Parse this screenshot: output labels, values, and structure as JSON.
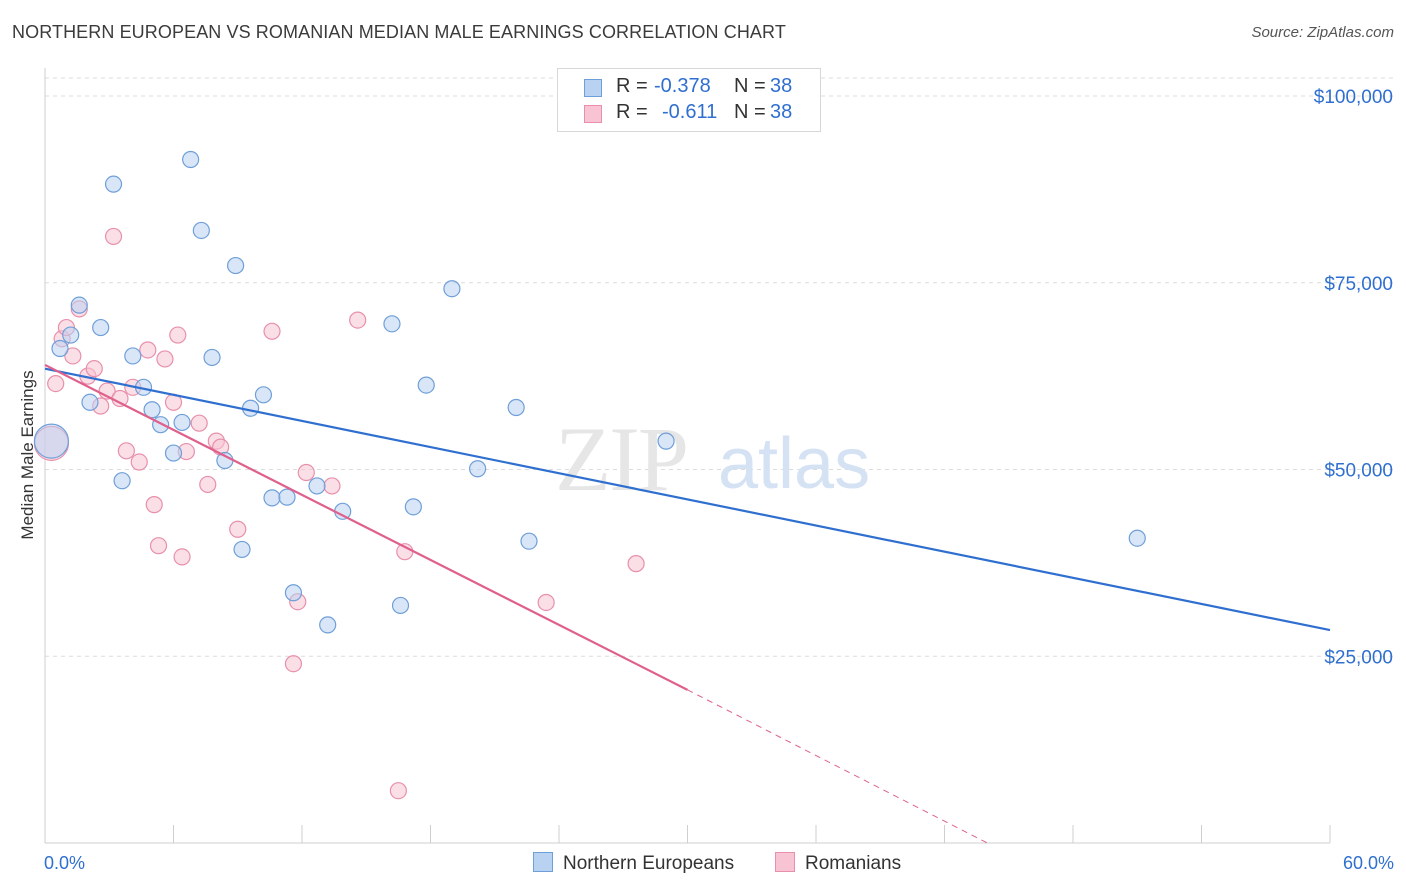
{
  "title": "NORTHERN EUROPEAN VS ROMANIAN MEDIAN MALE EARNINGS CORRELATION CHART",
  "source": "Source: ZipAtlas.com",
  "watermark": {
    "zip": "ZIP",
    "atlas": "atlas"
  },
  "legend": {
    "series1": {
      "r_label": "R =",
      "r_value": "-0.378",
      "n_label": "N =",
      "n_value": "38"
    },
    "series2": {
      "r_label": "R =",
      "r_value": "-0.611",
      "n_label": "N =",
      "n_value": "38"
    }
  },
  "colors": {
    "blue_fill": "#b9d2f2",
    "blue_stroke": "#6f9fd8",
    "blue_line": "#2f6fd0",
    "pink_fill": "#f8c4d4",
    "pink_stroke": "#e890ab",
    "pink_line": "#e0608c",
    "axis_text": "#2f6fd0",
    "grid": "#dcdcdc"
  },
  "chart_data": {
    "type": "scatter",
    "title": "NORTHERN EUROPEAN VS ROMANIAN MEDIAN MALE EARNINGS CORRELATION CHART",
    "xlabel": "",
    "ylabel": "Median Male Earnings",
    "xlim": [
      0,
      60
    ],
    "ylim": [
      0,
      105000
    ],
    "x_tick_labels": [
      "0.0%",
      "60.0%"
    ],
    "y_ticks": [
      25000,
      50000,
      75000,
      100000
    ],
    "y_tick_labels": [
      "$25,000",
      "$50,000",
      "$75,000",
      "$100,000"
    ],
    "grid": true,
    "legend_position": "top-center",
    "series": [
      {
        "name": "Northern Europeans",
        "color": "#6f9fd8",
        "trend": {
          "x": [
            0,
            60
          ],
          "y": [
            63500,
            28500
          ]
        },
        "points": [
          {
            "x": 0.3,
            "y": 53800,
            "size": "large"
          },
          {
            "x": 0.7,
            "y": 66200
          },
          {
            "x": 1.2,
            "y": 68000
          },
          {
            "x": 1.6,
            "y": 72000
          },
          {
            "x": 2.1,
            "y": 59000
          },
          {
            "x": 2.6,
            "y": 69000
          },
          {
            "x": 3.2,
            "y": 88200
          },
          {
            "x": 3.6,
            "y": 48500
          },
          {
            "x": 4.1,
            "y": 65200
          },
          {
            "x": 4.6,
            "y": 61000
          },
          {
            "x": 5.0,
            "y": 58000
          },
          {
            "x": 5.4,
            "y": 56000
          },
          {
            "x": 6.0,
            "y": 52200
          },
          {
            "x": 6.4,
            "y": 56300
          },
          {
            "x": 6.8,
            "y": 91500
          },
          {
            "x": 7.3,
            "y": 82000
          },
          {
            "x": 7.8,
            "y": 65000
          },
          {
            "x": 8.4,
            "y": 51200
          },
          {
            "x": 8.9,
            "y": 77300
          },
          {
            "x": 9.2,
            "y": 39300
          },
          {
            "x": 9.6,
            "y": 58200
          },
          {
            "x": 10.2,
            "y": 60000
          },
          {
            "x": 10.6,
            "y": 46200
          },
          {
            "x": 11.3,
            "y": 46300
          },
          {
            "x": 11.6,
            "y": 33500
          },
          {
            "x": 12.7,
            "y": 47800
          },
          {
            "x": 13.2,
            "y": 29200
          },
          {
            "x": 13.9,
            "y": 44400
          },
          {
            "x": 16.2,
            "y": 69500
          },
          {
            "x": 16.6,
            "y": 31800
          },
          {
            "x": 17.2,
            "y": 45000
          },
          {
            "x": 17.8,
            "y": 61300
          },
          {
            "x": 19.0,
            "y": 74200
          },
          {
            "x": 20.2,
            "y": 50100
          },
          {
            "x": 22.0,
            "y": 58300
          },
          {
            "x": 22.6,
            "y": 40400
          },
          {
            "x": 29.0,
            "y": 53800
          },
          {
            "x": 51.0,
            "y": 40800
          }
        ]
      },
      {
        "name": "Romanians",
        "color": "#e890ab",
        "trend": {
          "x": [
            0,
            30
          ],
          "y": [
            64000,
            20500
          ],
          "dashed_to": {
            "x": 44,
            "y": 0
          }
        },
        "points": [
          {
            "x": 0.3,
            "y": 53500,
            "size": "large"
          },
          {
            "x": 0.5,
            "y": 61500
          },
          {
            "x": 0.8,
            "y": 67500
          },
          {
            "x": 1.0,
            "y": 69000
          },
          {
            "x": 1.3,
            "y": 65200
          },
          {
            "x": 1.6,
            "y": 71500
          },
          {
            "x": 2.0,
            "y": 62500
          },
          {
            "x": 2.3,
            "y": 63500
          },
          {
            "x": 2.6,
            "y": 58500
          },
          {
            "x": 2.9,
            "y": 60500
          },
          {
            "x": 3.2,
            "y": 81200
          },
          {
            "x": 3.5,
            "y": 59500
          },
          {
            "x": 3.8,
            "y": 52500
          },
          {
            "x": 4.1,
            "y": 61000
          },
          {
            "x": 4.4,
            "y": 51000
          },
          {
            "x": 4.8,
            "y": 66000
          },
          {
            "x": 5.1,
            "y": 45300
          },
          {
            "x": 5.3,
            "y": 39800
          },
          {
            "x": 5.6,
            "y": 64800
          },
          {
            "x": 6.0,
            "y": 59000
          },
          {
            "x": 6.2,
            "y": 68000
          },
          {
            "x": 6.4,
            "y": 38300
          },
          {
            "x": 6.6,
            "y": 52400
          },
          {
            "x": 7.2,
            "y": 56200
          },
          {
            "x": 7.6,
            "y": 48000
          },
          {
            "x": 8.0,
            "y": 53800
          },
          {
            "x": 9.0,
            "y": 42000
          },
          {
            "x": 10.6,
            "y": 68500
          },
          {
            "x": 11.6,
            "y": 24000
          },
          {
            "x": 11.8,
            "y": 32300
          },
          {
            "x": 12.2,
            "y": 49600
          },
          {
            "x": 13.4,
            "y": 47800
          },
          {
            "x": 14.6,
            "y": 70000
          },
          {
            "x": 16.5,
            "y": 7000
          },
          {
            "x": 16.8,
            "y": 39000
          },
          {
            "x": 23.4,
            "y": 32200
          },
          {
            "x": 27.6,
            "y": 37400
          },
          {
            "x": 8.2,
            "y": 53000
          }
        ]
      }
    ]
  }
}
